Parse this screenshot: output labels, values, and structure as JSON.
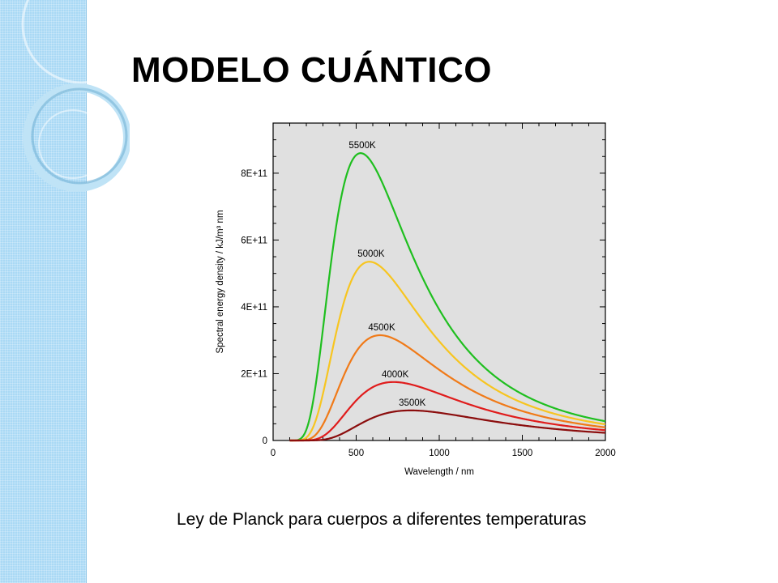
{
  "slide": {
    "title": "MODELO CUÁNTICO",
    "caption": "Ley de Planck para cuerpos a diferentes temperaturas",
    "accent_color": "#a9d9f5"
  },
  "chart_data": {
    "type": "line",
    "title": "",
    "xlabel": "Wavelength / nm",
    "ylabel": "Spectral energy density / kJ/m³ nm",
    "xlim": [
      0,
      2000
    ],
    "ylim": [
      0,
      950000000000.0
    ],
    "x_ticks": [
      0,
      500,
      1000,
      1500,
      2000
    ],
    "x_tick_labels": [
      "0",
      "500",
      "1000",
      "1500",
      "2000"
    ],
    "y_ticks": [
      0,
      200000000000.0,
      400000000000.0,
      600000000000.0,
      800000000000.0
    ],
    "y_tick_labels": [
      "0",
      "2E+11",
      "4E+11",
      "6E+11",
      "8E+11"
    ],
    "background": "#e0e0e0",
    "grid": false,
    "series": [
      {
        "name": "5500K",
        "temperature_K": 5500,
        "color": "#1fbf1f",
        "peak": {
          "x": 527,
          "y": 860000000000.0
        }
      },
      {
        "name": "5000K",
        "temperature_K": 5000,
        "color": "#f7c520",
        "peak": {
          "x": 580,
          "y": 535000000000.0
        }
      },
      {
        "name": "4500K",
        "temperature_K": 4500,
        "color": "#f07a18",
        "peak": {
          "x": 644,
          "y": 315000000000.0
        }
      },
      {
        "name": "4000K",
        "temperature_K": 4000,
        "color": "#e01c1c",
        "peak": {
          "x": 725,
          "y": 175000000000.0
        }
      },
      {
        "name": "3500K",
        "temperature_K": 3500,
        "color": "#8b0d0d",
        "peak": {
          "x": 828,
          "y": 90000000000.0
        }
      }
    ]
  }
}
